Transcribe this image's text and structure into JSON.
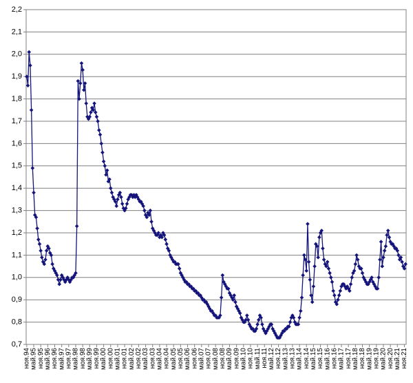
{
  "chart_data": {
    "type": "line",
    "marker": "diamond",
    "color": "#14147a",
    "grid": true,
    "ylim": [
      0.7,
      2.2
    ],
    "yticks": [
      {
        "value": 0.7,
        "label": "0,7"
      },
      {
        "value": 0.8,
        "label": "0,8"
      },
      {
        "value": 0.9,
        "label": "0,9"
      },
      {
        "value": 1.0,
        "label": "1,0"
      },
      {
        "value": 1.1,
        "label": "1,1"
      },
      {
        "value": 1.2,
        "label": "1,2"
      },
      {
        "value": 1.3,
        "label": "1,3"
      },
      {
        "value": 1.4,
        "label": "1,4"
      },
      {
        "value": 1.5,
        "label": "1,5"
      },
      {
        "value": 1.6,
        "label": "1,6"
      },
      {
        "value": 1.7,
        "label": "1,7"
      },
      {
        "value": 1.8,
        "label": "1,8"
      },
      {
        "value": 1.9,
        "label": "1,9"
      },
      {
        "value": 2.0,
        "label": "2,0"
      },
      {
        "value": 2.1,
        "label": "2,1"
      },
      {
        "value": 2.2,
        "label": "2,2"
      }
    ],
    "categories": [
      "ноя.94",
      null,
      null,
      null,
      null,
      null,
      "май.95",
      null,
      null,
      null,
      null,
      null,
      "ноя.95",
      null,
      null,
      null,
      null,
      null,
      "май.96",
      null,
      null,
      null,
      null,
      null,
      "ноя.96",
      null,
      null,
      null,
      null,
      null,
      "май.97",
      null,
      null,
      null,
      null,
      null,
      "ноя.97",
      null,
      null,
      null,
      null,
      null,
      "май.98",
      null,
      null,
      null,
      null,
      null,
      "ноя.98",
      null,
      null,
      null,
      null,
      null,
      "май.99",
      null,
      null,
      null,
      null,
      null,
      "ноя.99",
      null,
      null,
      null,
      null,
      null,
      "май.00",
      null,
      null,
      null,
      null,
      null,
      "ноя.00",
      null,
      null,
      null,
      null,
      null,
      "май.01",
      null,
      null,
      null,
      null,
      null,
      "ноя.01",
      null,
      null,
      null,
      null,
      null,
      "май.02",
      null,
      null,
      null,
      null,
      null,
      "ноя.02",
      null,
      null,
      null,
      null,
      null,
      "май.03",
      null,
      null,
      null,
      null,
      null,
      "ноя.03",
      null,
      null,
      null,
      null,
      null,
      "май.04",
      null,
      null,
      null,
      null,
      null,
      "ноя.04",
      null,
      null,
      null,
      null,
      null,
      "май.05",
      null,
      null,
      null,
      null,
      null,
      "ноя.05",
      null,
      null,
      null,
      null,
      null,
      "май.06",
      null,
      null,
      null,
      null,
      null,
      "ноя.06",
      null,
      null,
      null,
      null,
      null,
      "май.07",
      null,
      null,
      null,
      null,
      null,
      "ноя.07",
      null,
      null,
      null,
      null,
      null,
      "май.08",
      null,
      null,
      null,
      null,
      null,
      "ноя.08",
      null,
      null,
      null,
      null,
      null,
      "май.09",
      null,
      null,
      null,
      null,
      null,
      "ноя.09",
      null,
      null,
      null,
      null,
      null,
      "май.10",
      null,
      null,
      null,
      null,
      null,
      "ноя.10",
      null,
      null,
      null,
      null,
      null,
      "май.11",
      null,
      null,
      null,
      null,
      null,
      "ноя.11",
      null,
      null,
      null,
      null,
      null,
      "май.12",
      null,
      null,
      null,
      null,
      null,
      "ноя.12",
      null,
      null,
      null,
      null,
      null,
      "май.13",
      null,
      null,
      null,
      null,
      null,
      "ноя.13",
      null,
      null,
      null,
      null,
      null,
      "май.14",
      null,
      null,
      null,
      null,
      null,
      "ноя.14",
      null,
      null,
      null,
      null,
      null,
      "май.15",
      null,
      null,
      null,
      null,
      null,
      "ноя.15",
      null,
      null,
      null,
      null,
      null,
      "май.16",
      null,
      null,
      null,
      null,
      null,
      "ноя.16",
      null,
      null,
      null,
      null,
      null,
      "май.17",
      null,
      null,
      null,
      null,
      null,
      "ноя.17",
      null,
      null,
      null,
      null,
      null,
      "май.18",
      null,
      null,
      null,
      null,
      null,
      "ноя.18",
      null,
      null,
      null,
      null,
      null,
      "май.19",
      null,
      null,
      null,
      null,
      null,
      "ноя.19",
      null,
      null,
      null,
      null,
      null,
      "май.20",
      null,
      null,
      null,
      null,
      null,
      "ноя.20",
      null,
      null,
      null,
      null,
      null,
      "май.21",
      null,
      null,
      null,
      null,
      null,
      "ноя.21",
      null
    ],
    "values": [
      1.9,
      1.86,
      2.01,
      1.95,
      1.75,
      1.49,
      1.38,
      1.28,
      1.27,
      1.22,
      1.17,
      1.15,
      1.12,
      1.09,
      1.07,
      1.06,
      1.08,
      1.12,
      1.14,
      1.13,
      1.11,
      1.1,
      1.06,
      1.04,
      1.03,
      1.02,
      1.01,
      0.99,
      0.97,
      0.99,
      1.01,
      1.0,
      0.99,
      0.98,
      0.99,
      1.0,
      0.99,
      0.98,
      0.99,
      1.0,
      1.0,
      1.01,
      1.02,
      1.23,
      1.88,
      1.8,
      1.87,
      1.96,
      1.93,
      1.84,
      1.87,
      1.78,
      1.72,
      1.71,
      1.72,
      1.74,
      1.76,
      1.75,
      1.78,
      1.74,
      1.72,
      1.7,
      1.66,
      1.64,
      1.6,
      1.56,
      1.52,
      1.5,
      1.46,
      1.48,
      1.43,
      1.44,
      1.4,
      1.38,
      1.36,
      1.35,
      1.34,
      1.32,
      1.35,
      1.37,
      1.38,
      1.36,
      1.33,
      1.31,
      1.3,
      1.31,
      1.33,
      1.35,
      1.36,
      1.37,
      1.37,
      1.36,
      1.37,
      1.36,
      1.37,
      1.36,
      1.35,
      1.34,
      1.34,
      1.33,
      1.32,
      1.3,
      1.28,
      1.27,
      1.29,
      1.28,
      1.3,
      1.25,
      1.22,
      1.21,
      1.2,
      1.19,
      1.19,
      1.2,
      1.18,
      1.19,
      1.18,
      1.2,
      1.19,
      1.17,
      1.15,
      1.13,
      1.12,
      1.1,
      1.09,
      1.08,
      1.07,
      1.07,
      1.06,
      1.06,
      1.06,
      1.04,
      1.02,
      1.01,
      1.0,
      0.99,
      0.98,
      0.98,
      0.97,
      0.97,
      0.96,
      0.96,
      0.95,
      0.95,
      0.94,
      0.94,
      0.93,
      0.93,
      0.92,
      0.92,
      0.91,
      0.9,
      0.9,
      0.89,
      0.89,
      0.88,
      0.87,
      0.86,
      0.85,
      0.85,
      0.84,
      0.83,
      0.83,
      0.82,
      0.82,
      0.82,
      0.83,
      0.91,
      1.01,
      0.98,
      0.97,
      0.96,
      0.95,
      0.95,
      0.93,
      0.92,
      0.91,
      0.9,
      0.92,
      0.89,
      0.87,
      0.86,
      0.85,
      0.84,
      0.82,
      0.81,
      0.8,
      0.8,
      0.81,
      0.83,
      0.81,
      0.79,
      0.78,
      0.77,
      0.77,
      0.76,
      0.76,
      0.77,
      0.79,
      0.81,
      0.83,
      0.82,
      0.79,
      0.77,
      0.76,
      0.75,
      0.76,
      0.77,
      0.78,
      0.79,
      0.79,
      0.77,
      0.76,
      0.75,
      0.74,
      0.73,
      0.73,
      0.73,
      0.74,
      0.75,
      0.76,
      0.76,
      0.77,
      0.77,
      0.78,
      0.78,
      0.8,
      0.82,
      0.83,
      0.82,
      0.8,
      0.79,
      0.79,
      0.79,
      0.82,
      0.85,
      0.91,
      1.01,
      1.1,
      1.08,
      1.03,
      1.24,
      1.07,
      0.99,
      0.92,
      0.89,
      0.96,
      1.05,
      1.15,
      1.14,
      1.09,
      1.18,
      1.2,
      1.21,
      1.13,
      1.08,
      1.06,
      1.05,
      1.07,
      1.04,
      1.02,
      1.0,
      0.98,
      0.94,
      0.92,
      0.89,
      0.88,
      0.9,
      0.92,
      0.94,
      0.96,
      0.97,
      0.97,
      0.96,
      0.95,
      0.96,
      0.95,
      0.94,
      0.97,
      1.0,
      1.02,
      1.03,
      1.06,
      1.1,
      1.08,
      1.05,
      1.04,
      1.04,
      1.02,
      1.0,
      0.99,
      0.98,
      0.97,
      0.97,
      0.98,
      0.99,
      1.0,
      0.98,
      0.97,
      0.96,
      0.95,
      0.95,
      1.0,
      1.08,
      1.16,
      1.05,
      1.09,
      1.12,
      1.14,
      1.19,
      1.21,
      1.18,
      1.16,
      1.15,
      1.15,
      1.14,
      1.13,
      1.13,
      1.12,
      1.1,
      1.08,
      1.09,
      1.07,
      1.05,
      1.04,
      1.06
    ]
  }
}
